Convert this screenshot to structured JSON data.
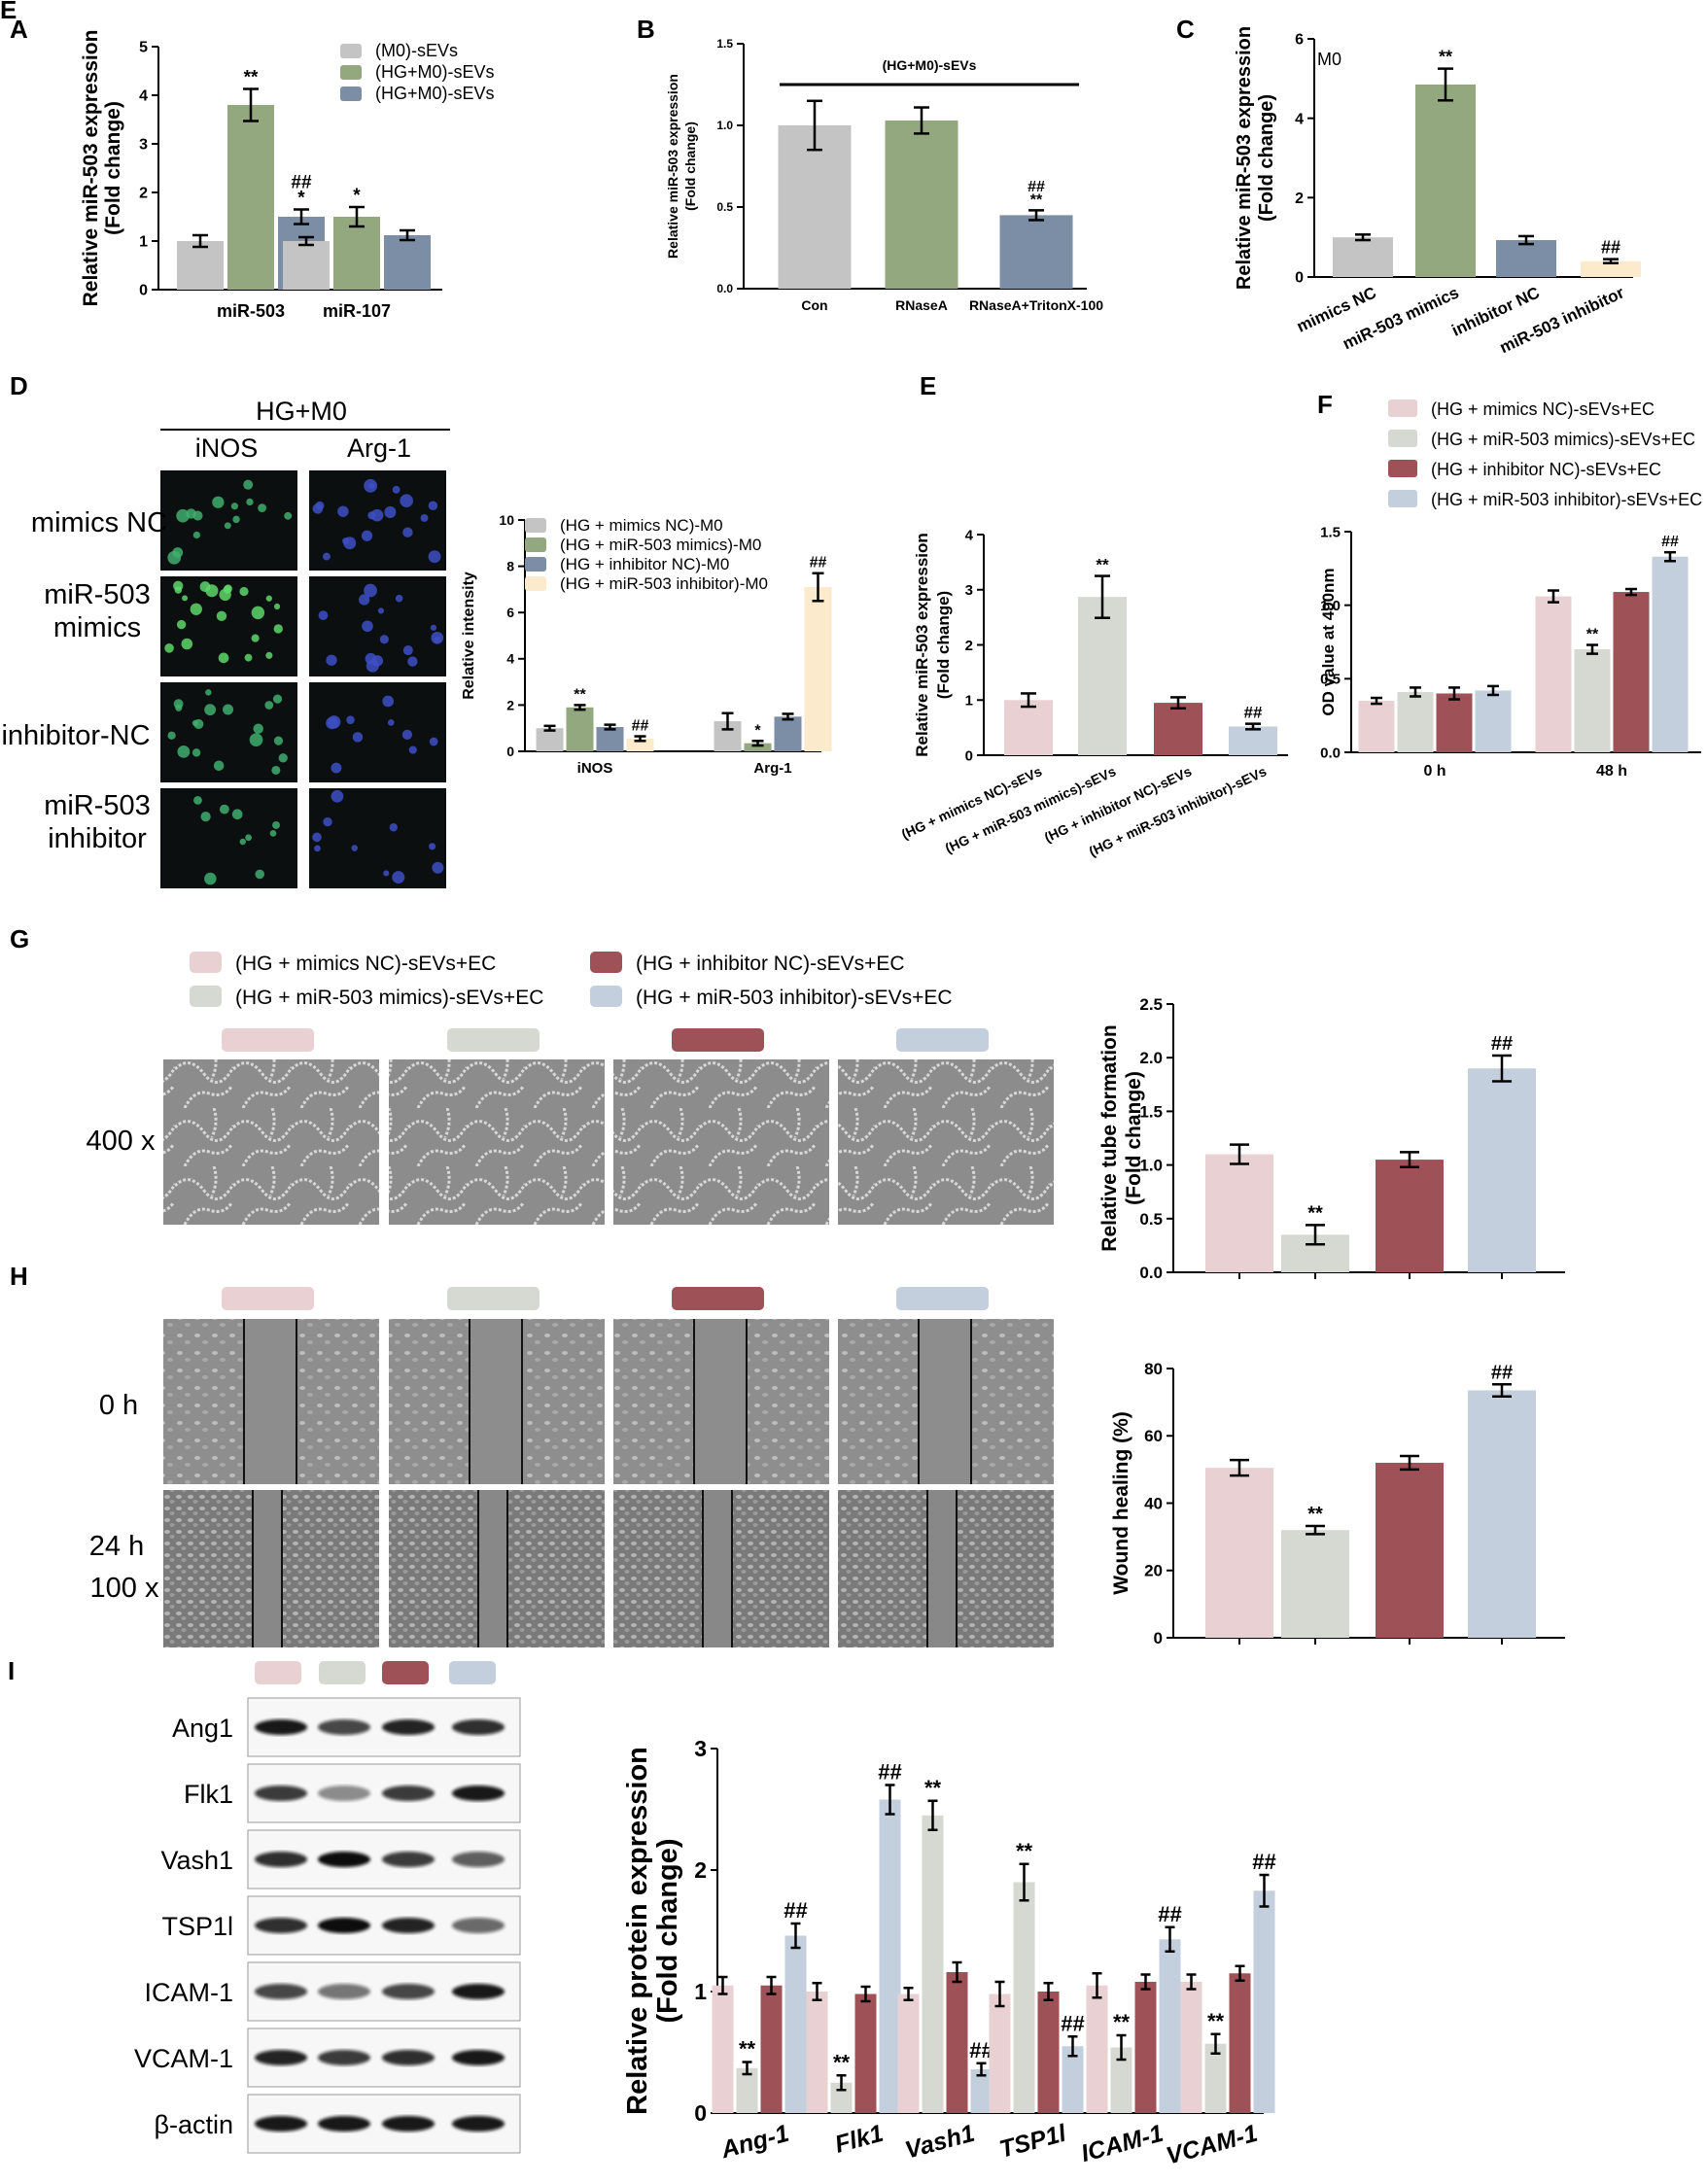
{
  "colors": {
    "grey": "#c4c4c4",
    "green": "#93a87f",
    "slate": "#7b8ea6",
    "peach": "#fbeacc",
    "pink": "#e9d1d3",
    "light_grey": "#d6d8d2",
    "maroon": "#9e5157",
    "light_blue": "#c4cfde",
    "micro_dark": "#0b0f10",
    "bright_field": "#8a8a8a"
  },
  "chart_data": [
    {
      "id": "A",
      "panel_label": "A",
      "type": "bar",
      "ylabel": "Relative miR-503 expression",
      "ylabel2": "(Fold change)",
      "ylim": [
        0,
        5
      ],
      "yticks": [
        "0",
        "1",
        "2",
        "3",
        "4",
        "5"
      ],
      "categories": [
        "miR-503",
        "miR-107"
      ],
      "series": [
        {
          "name": "(M0)-sEVs",
          "color": "grey",
          "values": [
            1.0,
            1.0
          ],
          "errors": [
            0.12,
            0.08
          ],
          "marks": [
            "",
            ""
          ]
        },
        {
          "name": "(HG+M0)-sEVs",
          "color": "green",
          "values": [
            3.8,
            1.5
          ],
          "errors": [
            0.33,
            0.2
          ],
          "marks": [
            "**",
            "*"
          ]
        },
        {
          "name": "(HG+M0)-sEVs",
          "color": "slate",
          "values": [
            1.5,
            1.12
          ],
          "errors": [
            0.15,
            0.1
          ],
          "marks": [
            "##\n*",
            ""
          ]
        }
      ]
    },
    {
      "id": "B",
      "panel_label": "B",
      "type": "bar",
      "ylabel": "Relative miR-503 expression",
      "ylabel2": "(Fold change)",
      "ylim": [
        0,
        1.5
      ],
      "yticks": [
        "0.0",
        "0.5",
        "1.0",
        "1.5"
      ],
      "annotation": "(HG+M0)-sEVs",
      "categories": [
        "Con",
        "RNaseA",
        "RNaseA+TritonX-100"
      ],
      "series": [
        {
          "colors": [
            "grey",
            "green",
            "slate"
          ],
          "values": [
            1.0,
            1.03,
            0.45
          ],
          "errors": [
            0.15,
            0.08,
            0.03
          ],
          "marks": [
            "",
            "",
            "##\n**"
          ]
        }
      ]
    },
    {
      "id": "C",
      "panel_label": "C",
      "type": "bar",
      "ylabel": "Relative miR-503 expression",
      "ylabel2": "(Fold change)",
      "ylim": [
        0,
        6
      ],
      "yticks": [
        "0",
        "2",
        "4",
        "6"
      ],
      "annotation": "M0",
      "categories": [
        "mimics NC",
        "miR-503 mimics",
        "inhibitor NC",
        "miR-503 inhibitor"
      ],
      "series": [
        {
          "colors": [
            "grey",
            "green",
            "slate",
            "peach"
          ],
          "values": [
            1.0,
            4.85,
            0.93,
            0.4
          ],
          "errors": [
            0.07,
            0.4,
            0.1,
            0.05
          ],
          "marks": [
            "",
            "**",
            "",
            "##"
          ]
        }
      ]
    },
    {
      "id": "D",
      "panel_label": "",
      "type": "bar",
      "ylabel": "Relative intensity",
      "ylabel2": "",
      "ylim": [
        0,
        10
      ],
      "yticks": [
        "0",
        "2",
        "4",
        "6",
        "8",
        "10"
      ],
      "categories": [
        "iNOS",
        "Arg-1"
      ],
      "series": [
        {
          "name": "(HG + mimics NC)-M0",
          "color": "grey",
          "values": [
            1.0,
            1.3
          ],
          "errors": [
            0.1,
            0.35
          ],
          "marks": [
            "",
            ""
          ]
        },
        {
          "name": "(HG + miR-503 mimics)-M0",
          "color": "green",
          "values": [
            1.9,
            0.35
          ],
          "errors": [
            0.1,
            0.1
          ],
          "marks": [
            "**",
            "*"
          ]
        },
        {
          "name": "(HG + inhibitor NC)-M0",
          "color": "slate",
          "values": [
            1.05,
            1.5
          ],
          "errors": [
            0.1,
            0.12
          ],
          "marks": [
            "",
            ""
          ]
        },
        {
          "name": "(HG + miR-503 inhibitor)-M0",
          "color": "peach",
          "values": [
            0.55,
            7.1
          ],
          "errors": [
            0.1,
            0.6
          ],
          "marks": [
            "##",
            "##"
          ]
        }
      ]
    },
    {
      "id": "E",
      "panel_label": "E",
      "type": "bar",
      "ylabel": "Relative miR-503 expression",
      "ylabel2": "(Fold change)",
      "ylim": [
        0,
        4
      ],
      "yticks": [
        "0",
        "1",
        "2",
        "3",
        "4"
      ],
      "categories": [
        "(HG + mimics NC)-sEVs",
        "(HG + miR-503 mimics)-sEVs",
        "(HG +  inhibitor NC)-sEVs",
        "(HG + miR-503  inhibitor)-sEVs"
      ],
      "series": [
        {
          "colors": [
            "pink",
            "light_grey",
            "maroon",
            "light_blue"
          ],
          "values": [
            1.0,
            2.87,
            0.95,
            0.52
          ],
          "errors": [
            0.12,
            0.38,
            0.1,
            0.05
          ],
          "marks": [
            "",
            "**",
            "",
            "##"
          ]
        }
      ]
    },
    {
      "id": "F",
      "panel_label": "F",
      "type": "bar",
      "ylabel": "OD value at 490nm",
      "ylabel2": "",
      "ylim": [
        0,
        1.5
      ],
      "yticks": [
        "0.0",
        "0.5",
        "1.0",
        "1.5"
      ],
      "categories": [
        "0 h",
        "48 h"
      ],
      "series": [
        {
          "name": "(HG + mimics NC)-sEVs+EC",
          "color": "pink",
          "values": [
            0.35,
            1.06
          ],
          "errors": [
            0.02,
            0.04
          ],
          "marks": [
            "",
            ""
          ]
        },
        {
          "name": "(HG + miR-503 mimics)-sEVs+EC",
          "color": "light_grey",
          "values": [
            0.41,
            0.7
          ],
          "errors": [
            0.03,
            0.03
          ],
          "marks": [
            "",
            "**"
          ]
        },
        {
          "name": "(HG + inhibitor NC)-sEVs+EC",
          "color": "maroon",
          "values": [
            0.4,
            1.09
          ],
          "errors": [
            0.04,
            0.02
          ],
          "marks": [
            "",
            ""
          ]
        },
        {
          "name": "(HG + miR-503 inhibitor)-sEVs+EC",
          "color": "light_blue",
          "values": [
            0.42,
            1.33
          ],
          "errors": [
            0.03,
            0.03
          ],
          "marks": [
            "",
            "##"
          ]
        }
      ]
    },
    {
      "id": "G",
      "panel_label": "",
      "type": "bar",
      "ylabel": "Relative tube formation",
      "ylabel2": "(Fold change)",
      "ylim": [
        0,
        2.5
      ],
      "yticks": [
        "0.0",
        "0.5",
        "1.0",
        "1.5",
        "2.0",
        "2.5"
      ],
      "categories": [
        "",
        "",
        "",
        ""
      ],
      "series": [
        {
          "colors": [
            "pink",
            "light_grey",
            "maroon",
            "light_blue"
          ],
          "values": [
            1.1,
            0.35,
            1.05,
            1.9
          ],
          "errors": [
            0.09,
            0.09,
            0.07,
            0.12
          ],
          "marks": [
            "",
            "**",
            "",
            "##"
          ]
        }
      ]
    },
    {
      "id": "H",
      "panel_label": "",
      "type": "bar",
      "ylabel": "Wound healing (%)",
      "ylabel2": "",
      "ylim": [
        0,
        80
      ],
      "yticks": [
        "0",
        "20",
        "40",
        "60",
        "80"
      ],
      "categories": [
        "",
        "",
        "",
        ""
      ],
      "series": [
        {
          "colors": [
            "pink",
            "light_grey",
            "maroon",
            "light_blue"
          ],
          "values": [
            50.5,
            32,
            52,
            73.5
          ],
          "errors": [
            2.3,
            1.2,
            2,
            1.8
          ],
          "marks": [
            "",
            "**",
            "",
            "##"
          ]
        }
      ]
    },
    {
      "id": "I",
      "panel_label": "",
      "type": "bar",
      "ylabel": "Relative protein expression",
      "ylabel2": "(Fold change)",
      "ylim": [
        0,
        3
      ],
      "yticks": [
        "0",
        "1",
        "2",
        "3"
      ],
      "categories": [
        "Ang-1",
        "Flk1",
        "Vash1",
        "TSP1l",
        "ICAM-1",
        "VCAM-1"
      ],
      "series": [
        {
          "color": "pink",
          "values": [
            1.05,
            1.0,
            0.98,
            0.98,
            1.05,
            1.08
          ],
          "errors": [
            0.07,
            0.07,
            0.05,
            0.1,
            0.1,
            0.06
          ],
          "marks": [
            "",
            "",
            "",
            "",
            "",
            ""
          ]
        },
        {
          "color": "light_grey",
          "values": [
            0.37,
            0.25,
            2.45,
            1.9,
            0.54,
            0.57
          ],
          "errors": [
            0.05,
            0.06,
            0.12,
            0.15,
            0.1,
            0.08
          ],
          "marks": [
            "**",
            "**",
            "**",
            "**",
            "**",
            "**"
          ]
        },
        {
          "color": "maroon",
          "values": [
            1.05,
            0.98,
            1.16,
            1.0,
            1.08,
            1.15
          ],
          "errors": [
            0.07,
            0.06,
            0.08,
            0.07,
            0.06,
            0.06
          ],
          "marks": [
            "",
            "",
            "",
            "",
            "",
            ""
          ]
        },
        {
          "color": "light_blue",
          "values": [
            1.46,
            2.58,
            0.36,
            0.55,
            1.43,
            1.83
          ],
          "errors": [
            0.1,
            0.12,
            0.05,
            0.08,
            0.1,
            0.13
          ],
          "marks": [
            "##",
            "##",
            "##",
            "##",
            "##",
            "##"
          ]
        }
      ]
    }
  ],
  "panel_labels": {
    "d": "D",
    "e": "E",
    "g": "G",
    "h": "H",
    "i": "I"
  },
  "panel_d": {
    "title": "HG+M0",
    "col1": "iNOS",
    "col2": "Arg-1",
    "rows": [
      "mimics NC",
      "miR-503\nmimics",
      "inhibitor-NC",
      "miR-503\ninhibitor"
    ]
  },
  "panel_g": {
    "legend": [
      {
        "label": "(HG + mimics NC)-sEVs+EC",
        "color": "pink"
      },
      {
        "label": "(HG + inhibitor NC)-sEVs+EC",
        "color": "maroon"
      },
      {
        "label": "(HG + miR-503 mimics)-sEVs+EC",
        "color": "light_grey"
      },
      {
        "label": "(HG + miR-503 inhibitor)-sEVs+EC",
        "color": "light_blue"
      }
    ],
    "row_label": "400 x"
  },
  "panel_h": {
    "row1": "0 h",
    "row2a": "24 h",
    "row2b": "100 x"
  },
  "panel_i": {
    "blots": [
      "Ang1",
      "Flk1",
      "Vash1",
      "TSP1l",
      "ICAM-1",
      "VCAM-1",
      "β-actin"
    ],
    "band_intensity": [
      [
        0.95,
        0.75,
        0.9,
        0.85
      ],
      [
        0.8,
        0.45,
        0.8,
        0.95
      ],
      [
        0.85,
        1.0,
        0.8,
        0.65
      ],
      [
        0.85,
        1.0,
        0.9,
        0.6
      ],
      [
        0.75,
        0.55,
        0.75,
        0.95
      ],
      [
        0.9,
        0.8,
        0.85,
        0.95
      ],
      [
        0.95,
        0.95,
        0.95,
        0.95
      ]
    ],
    "group_colors": [
      "pink",
      "light_grey",
      "maroon",
      "light_blue"
    ]
  }
}
